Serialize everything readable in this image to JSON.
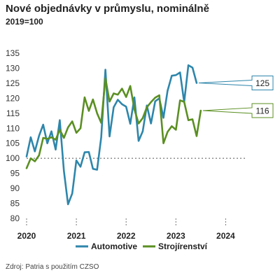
{
  "title": "Nové objednávky v průmyslu, nominálně",
  "subtitle": "2019=100",
  "source": "Zdroj: Patria s použitím CZSO",
  "chart_data": {
    "type": "line",
    "x_start": "2020-01",
    "x_ticks": [
      "2020",
      "2021",
      "2022",
      "2023",
      "2024"
    ],
    "y_ticks": [
      "80",
      "85",
      "90",
      "95",
      "100",
      "105",
      "110",
      "115",
      "120",
      "125",
      "130",
      "135"
    ],
    "ylim": [
      80,
      135
    ],
    "xlim": [
      "2020-01",
      "2024-06"
    ],
    "reference_line": 100,
    "series": [
      {
        "name": "Automotive",
        "color": "#2e86ab",
        "end_label": "125",
        "values": [
          100.6,
          107.0,
          102.3,
          107.5,
          111.2,
          105.0,
          109.0,
          102.9,
          112.7,
          95.8,
          84.7,
          88.3,
          99.3,
          97.2,
          102.0,
          102.1,
          96.5,
          96.2,
          107.0,
          129.5,
          107.3,
          117.0,
          119.5,
          118.0,
          117.2,
          111.5,
          120.3,
          105.8,
          109.0,
          117.6,
          111.6,
          119.0,
          120.0,
          113.5,
          122.5,
          127.5,
          127.7,
          128.6,
          118.7,
          131.0,
          130.2,
          125.1
        ]
      },
      {
        "name": "Strojírenství",
        "color": "#5b8f22",
        "end_label": "116",
        "values": [
          96.7,
          100.0,
          99.0,
          101.0,
          106.8,
          106.5,
          107.0,
          106.2,
          109.5,
          106.8,
          110.3,
          112.3,
          108.5,
          110.0,
          120.3,
          115.8,
          119.6,
          115.0,
          111.8,
          126.6,
          118.9,
          121.6,
          121.2,
          123.2,
          120.4,
          124.1,
          116.3,
          111.6,
          113.4,
          117.0,
          118.7,
          120.2,
          121.0,
          105.0,
          108.8,
          110.7,
          109.5,
          119.3,
          118.8,
          112.7,
          113.0,
          107.4,
          115.9
        ]
      }
    ],
    "legend_position": "bottom"
  }
}
